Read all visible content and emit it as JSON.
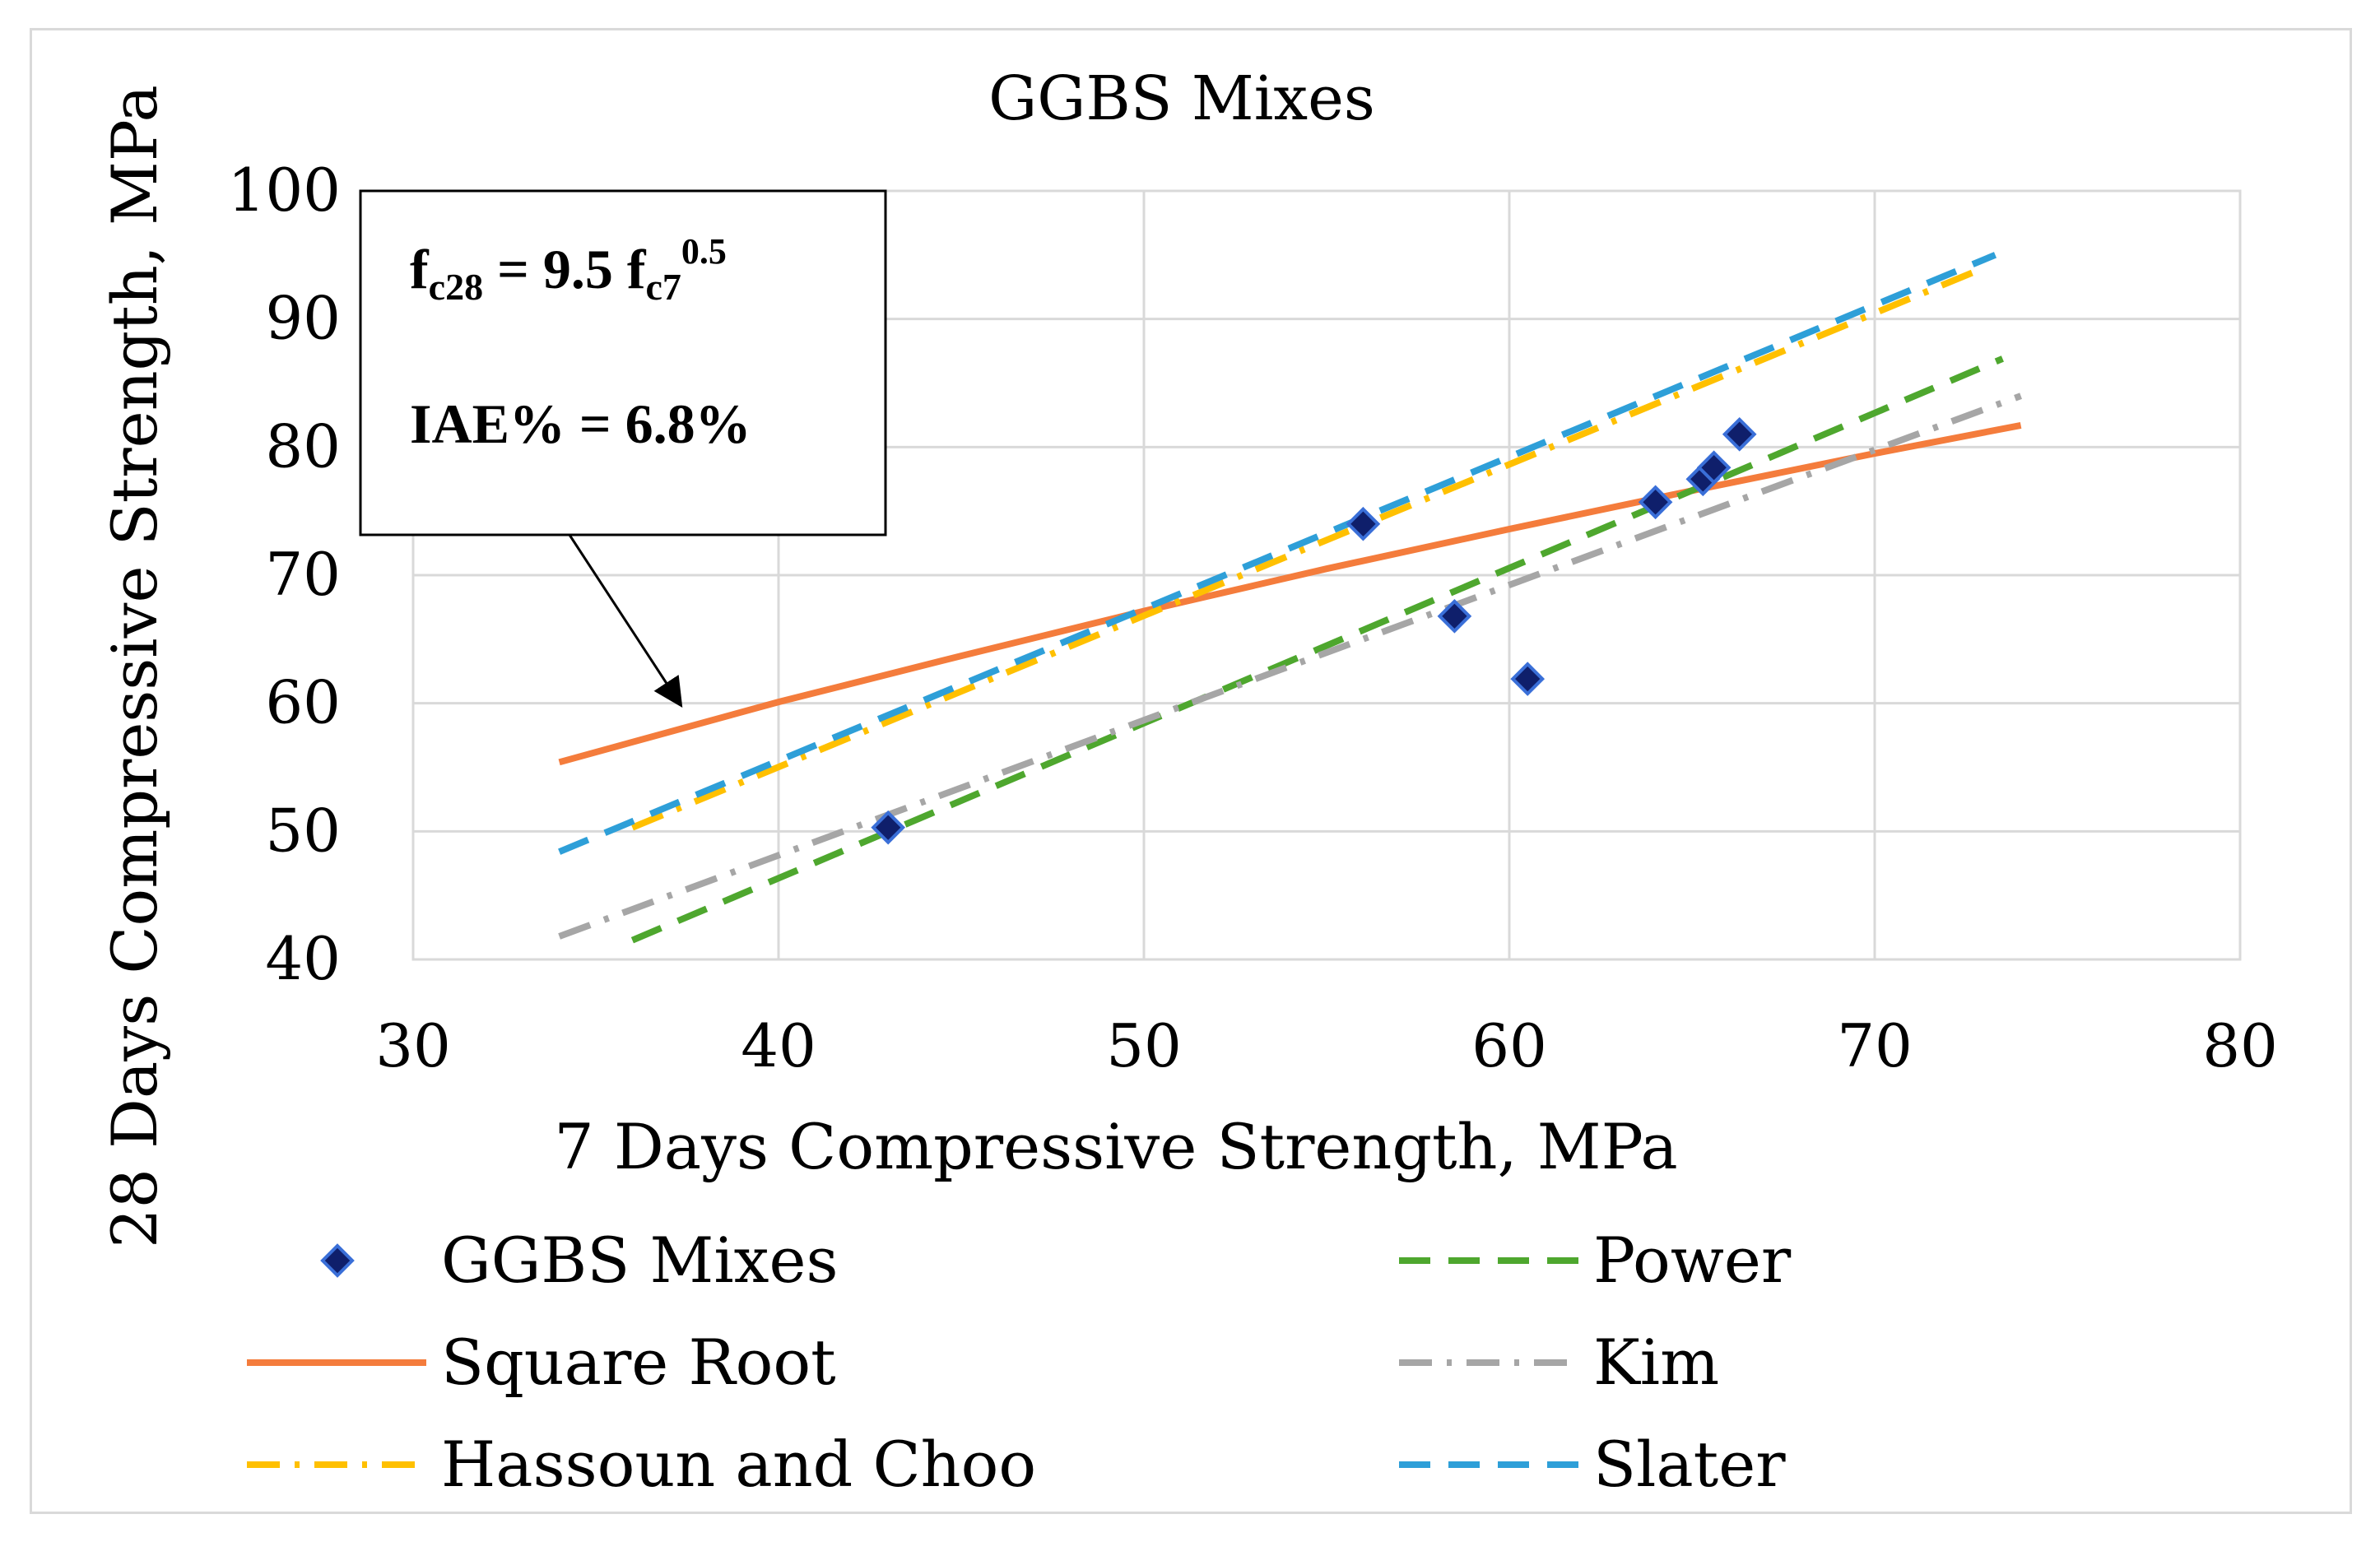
{
  "chart_data": {
    "type": "scatter",
    "title": "GGBS Mixes",
    "xlabel": "7 Days Compressive Strength, MPa",
    "ylabel": "28 Days Compressive Strength, MPa",
    "xlim": [
      30,
      80
    ],
    "ylim": [
      40,
      100
    ],
    "xticks": [
      30,
      40,
      50,
      60,
      70,
      80
    ],
    "yticks": [
      40,
      50,
      60,
      70,
      80,
      90,
      100
    ],
    "grid": true,
    "legend_position": "bottom",
    "annotation": {
      "eq_main": "f",
      "eq_sub1": "c28",
      "eq_mid": " = 9.5 f",
      "eq_sub2": "c7",
      "eq_sup": "0.5",
      "iae": "IAE% = 6.8%"
    },
    "series": [
      {
        "name": "GGBS Mixes",
        "kind": "scatter",
        "color": "#1f3a93",
        "x": [
          43.0,
          56.0,
          58.5,
          60.5,
          64.0,
          65.3,
          65.6,
          66.3
        ],
        "y": [
          50.3,
          74.0,
          66.8,
          61.9,
          75.7,
          77.5,
          78.4,
          81.0
        ]
      },
      {
        "name": "Square Root",
        "kind": "line",
        "color": "#f47c3c",
        "dash": "solid",
        "x": [
          34,
          40,
          45,
          50,
          55,
          60,
          65,
          70,
          74
        ],
        "y": [
          55.4,
          60.1,
          63.7,
          67.2,
          70.5,
          73.6,
          76.6,
          79.5,
          81.7
        ]
      },
      {
        "name": "Hassoun and Choo",
        "kind": "line",
        "color": "#ffc000",
        "dash": "dashdot",
        "x": [
          36,
          73
        ],
        "y": [
          50.3,
          94.0
        ]
      },
      {
        "name": "Power",
        "kind": "line",
        "color": "#4ea72e",
        "dash": "dash",
        "x": [
          36,
          73.5
        ],
        "y": [
          41.5,
          86.9
        ]
      },
      {
        "name": "Kim",
        "kind": "line",
        "color": "#a6a6a6",
        "dash": "dashdot",
        "x": [
          34,
          74
        ],
        "y": [
          41.8,
          84.0
        ]
      },
      {
        "name": "Slater",
        "kind": "line",
        "color": "#2e9fd8",
        "dash": "dash",
        "x": [
          34,
          73.3
        ],
        "y": [
          48.4,
          95.0
        ]
      }
    ]
  }
}
